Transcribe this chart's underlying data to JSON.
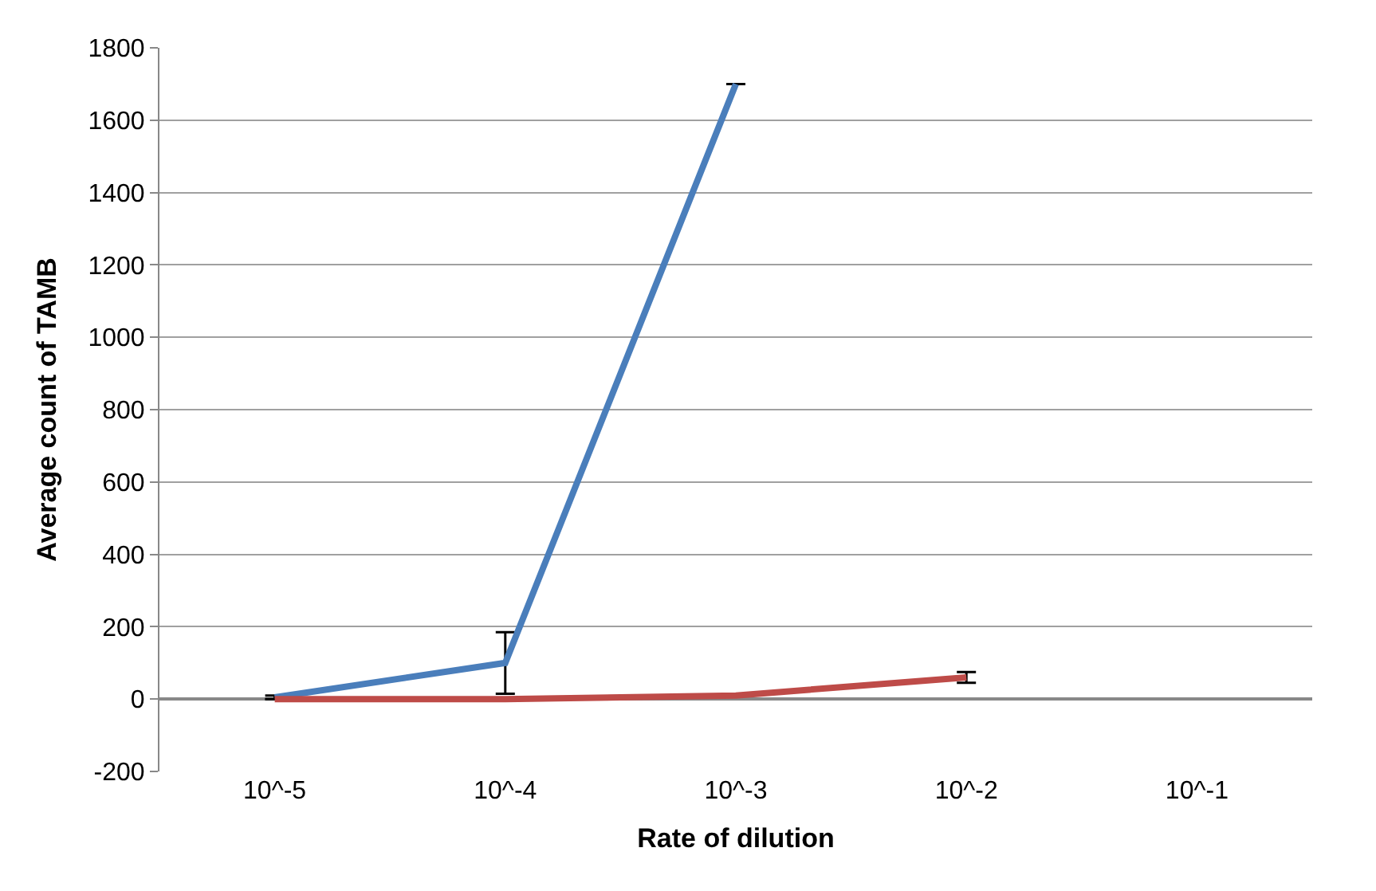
{
  "chart_data": {
    "type": "line",
    "xlabel": "Rate of dilution",
    "ylabel": "Average count of TAMB",
    "categories": [
      "10^-5",
      "10^-4",
      "10^-3",
      "10^-2",
      "10^-1"
    ],
    "series": [
      {
        "color": "#4a7ebb",
        "values": [
          5,
          100,
          1700,
          null,
          null
        ],
        "errors": [
          5,
          85,
          null,
          null,
          null
        ]
      },
      {
        "color": "#be4b48",
        "values": [
          0,
          0,
          10,
          60,
          null
        ],
        "errors": [
          null,
          null,
          null,
          15,
          null
        ]
      }
    ],
    "ylim": [
      -200,
      1800
    ],
    "yticks": [
      -200,
      0,
      200,
      400,
      600,
      800,
      1000,
      1200,
      1400,
      1600,
      1800
    ],
    "grid": "y",
    "marker": "none",
    "line_style": "solid"
  }
}
